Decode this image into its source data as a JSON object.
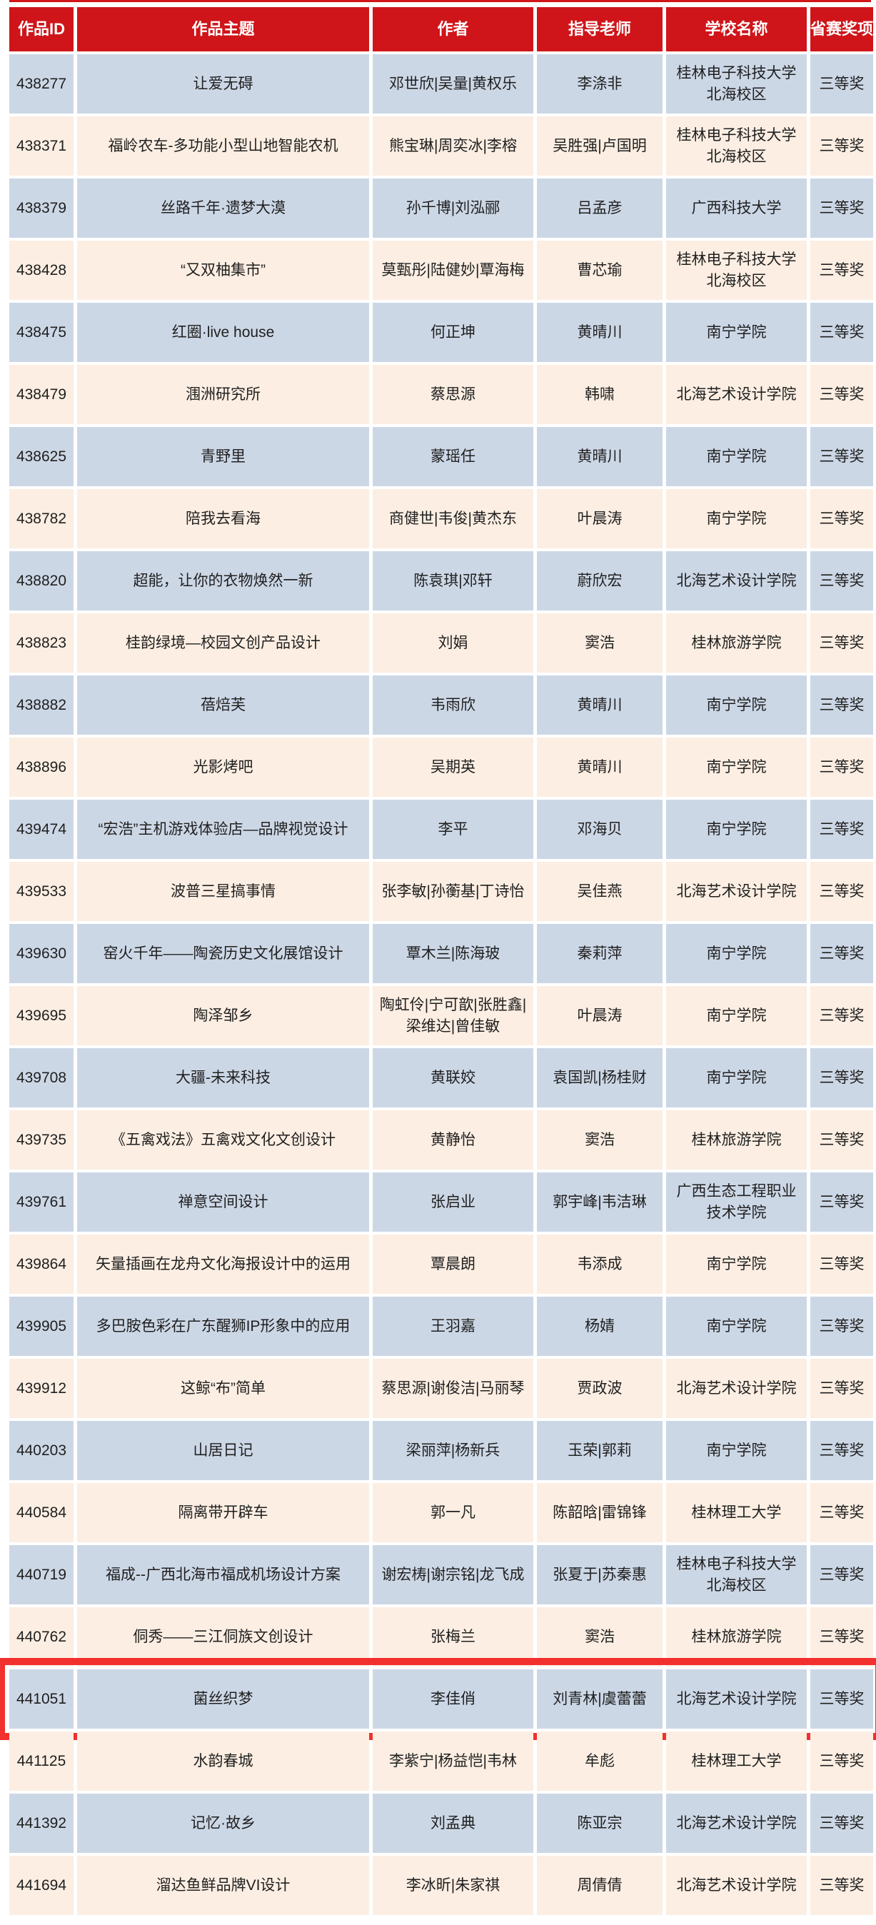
{
  "colors": {
    "header_bg": "#cf1519",
    "header_text": "#ffffff",
    "row_blue": "#ccd7e6",
    "row_peach": "#fceee2",
    "text": "#1f1f1f",
    "highlight": "#f2302e"
  },
  "highlight": {
    "row_id": "441051"
  },
  "table": {
    "columns": [
      "作品ID",
      "作品主题",
      "作者",
      "指导老师",
      "学校名称",
      "省赛奖项"
    ],
    "rows": [
      {
        "id": "438277",
        "theme": "让爱无碍",
        "authors": "邓世欣|吴量|黄权乐",
        "teachers": "李涤非",
        "school": "桂林电子科技大学北海校区",
        "award": "三等奖"
      },
      {
        "id": "438371",
        "theme": "福岭农车-多功能小型山地智能农机",
        "authors": "熊宝琳|周奕冰|李榕",
        "teachers": "吴胜强|卢国明",
        "school": "桂林电子科技大学北海校区",
        "award": "三等奖"
      },
      {
        "id": "438379",
        "theme": "丝路千年·遗梦大漠",
        "authors": "孙千博|刘泓郦",
        "teachers": "吕孟彦",
        "school": "广西科技大学",
        "award": "三等奖"
      },
      {
        "id": "438428",
        "theme": "“又双柚集市”",
        "authors": "莫甄彤|陆健妙|覃海梅",
        "teachers": "曹芯瑜",
        "school": "桂林电子科技大学北海校区",
        "award": "三等奖"
      },
      {
        "id": "438475",
        "theme": "红圈·live house",
        "authors": "何正坤",
        "teachers": "黄晴川",
        "school": "南宁学院",
        "award": "三等奖"
      },
      {
        "id": "438479",
        "theme": "涠洲研究所",
        "authors": "蔡思源",
        "teachers": "韩啸",
        "school": "北海艺术设计学院",
        "award": "三等奖"
      },
      {
        "id": "438625",
        "theme": "青野里",
        "authors": "蒙瑶任",
        "teachers": "黄晴川",
        "school": "南宁学院",
        "award": "三等奖"
      },
      {
        "id": "438782",
        "theme": "陪我去看海",
        "authors": "商健世|韦俊|黄杰东",
        "teachers": "叶晨涛",
        "school": "南宁学院",
        "award": "三等奖"
      },
      {
        "id": "438820",
        "theme": "超能，让你的衣物焕然一新",
        "authors": "陈袁琪|邓轩",
        "teachers": "蔚欣宏",
        "school": "北海艺术设计学院",
        "award": "三等奖"
      },
      {
        "id": "438823",
        "theme": "桂韵绿境—校园文创产品设计",
        "authors": "刘娟",
        "teachers": "窦浩",
        "school": "桂林旅游学院",
        "award": "三等奖"
      },
      {
        "id": "438882",
        "theme": "蓓焙芙",
        "authors": "韦雨欣",
        "teachers": "黄晴川",
        "school": "南宁学院",
        "award": "三等奖"
      },
      {
        "id": "438896",
        "theme": "光影烤吧",
        "authors": "吴期英",
        "teachers": "黄晴川",
        "school": "南宁学院",
        "award": "三等奖"
      },
      {
        "id": "439474",
        "theme": "“宏浩”主机游戏体验店—品牌视觉设计",
        "authors": "李平",
        "teachers": "邓海贝",
        "school": "南宁学院",
        "award": "三等奖"
      },
      {
        "id": "439533",
        "theme": "波普三星搞事情",
        "authors": "张李敏|孙蘅基|丁诗怡",
        "teachers": "吴佳燕",
        "school": "北海艺术设计学院",
        "award": "三等奖"
      },
      {
        "id": "439630",
        "theme": "窑火千年——陶瓷历史文化展馆设计",
        "authors": "覃木兰|陈海玻",
        "teachers": "秦莉萍",
        "school": "南宁学院",
        "award": "三等奖"
      },
      {
        "id": "439695",
        "theme": "陶泽邹乡",
        "authors": "陶虹伶|宁可歆|张胜鑫|梁维达|曾佳敏",
        "teachers": "叶晨涛",
        "school": "南宁学院",
        "award": "三等奖"
      },
      {
        "id": "439708",
        "theme": "大疆-未来科技",
        "authors": "黄联姣",
        "teachers": "袁国凯|杨桂财",
        "school": "南宁学院",
        "award": "三等奖"
      },
      {
        "id": "439735",
        "theme": "《五禽戏法》五禽戏文化文创设计",
        "authors": "黄静怡",
        "teachers": "窦浩",
        "school": "桂林旅游学院",
        "award": "三等奖"
      },
      {
        "id": "439761",
        "theme": "禅意空间设计",
        "authors": "张启业",
        "teachers": "郭宇峰|韦洁琳",
        "school": "广西生态工程职业技术学院",
        "award": "三等奖"
      },
      {
        "id": "439864",
        "theme": "矢量插画在龙舟文化海报设计中的运用",
        "authors": "覃晨朗",
        "teachers": "韦添成",
        "school": "南宁学院",
        "award": "三等奖"
      },
      {
        "id": "439905",
        "theme": "多巴胺色彩在广东醒狮IP形象中的应用",
        "authors": "王羽嘉",
        "teachers": "杨婧",
        "school": "南宁学院",
        "award": "三等奖"
      },
      {
        "id": "439912",
        "theme": "这鲸“布”简单",
        "authors": "蔡思源|谢俊洁|马丽琴",
        "teachers": "贾政波",
        "school": "北海艺术设计学院",
        "award": "三等奖"
      },
      {
        "id": "440203",
        "theme": "山居日记",
        "authors": "梁丽萍|杨新兵",
        "teachers": "玉荣|郭莉",
        "school": "南宁学院",
        "award": "三等奖"
      },
      {
        "id": "440584",
        "theme": "隔离带开辟车",
        "authors": "郭一凡",
        "teachers": "陈韶晗|雷锦锋",
        "school": "桂林理工大学",
        "award": "三等奖"
      },
      {
        "id": "440719",
        "theme": "福成--广西北海市福成机场设计方案",
        "authors": "谢宏梼|谢宗铭|龙飞成",
        "teachers": "张夏于|苏秦惠",
        "school": "桂林电子科技大学北海校区",
        "award": "三等奖"
      },
      {
        "id": "440762",
        "theme": "侗秀——三江侗族文创设计",
        "authors": "张梅兰",
        "teachers": "窦浩",
        "school": "桂林旅游学院",
        "award": "三等奖"
      },
      {
        "id": "441051",
        "theme": "菌丝织梦",
        "authors": "李佳俏",
        "teachers": "刘青林|虞蕾蕾",
        "school": "北海艺术设计学院",
        "award": "三等奖"
      },
      {
        "id": "441125",
        "theme": "水韵春城",
        "authors": "李紫宁|杨益恺|韦林",
        "teachers": "牟彪",
        "school": "桂林理工大学",
        "award": "三等奖"
      },
      {
        "id": "441392",
        "theme": "记忆·故乡",
        "authors": "刘孟典",
        "teachers": "陈亚宗",
        "school": "北海艺术设计学院",
        "award": "三等奖"
      },
      {
        "id": "441694",
        "theme": "溜达鱼鲜品牌VI设计",
        "authors": "李冰昕|朱家祺",
        "teachers": "周倩倩",
        "school": "北海艺术设计学院",
        "award": "三等奖"
      }
    ]
  }
}
